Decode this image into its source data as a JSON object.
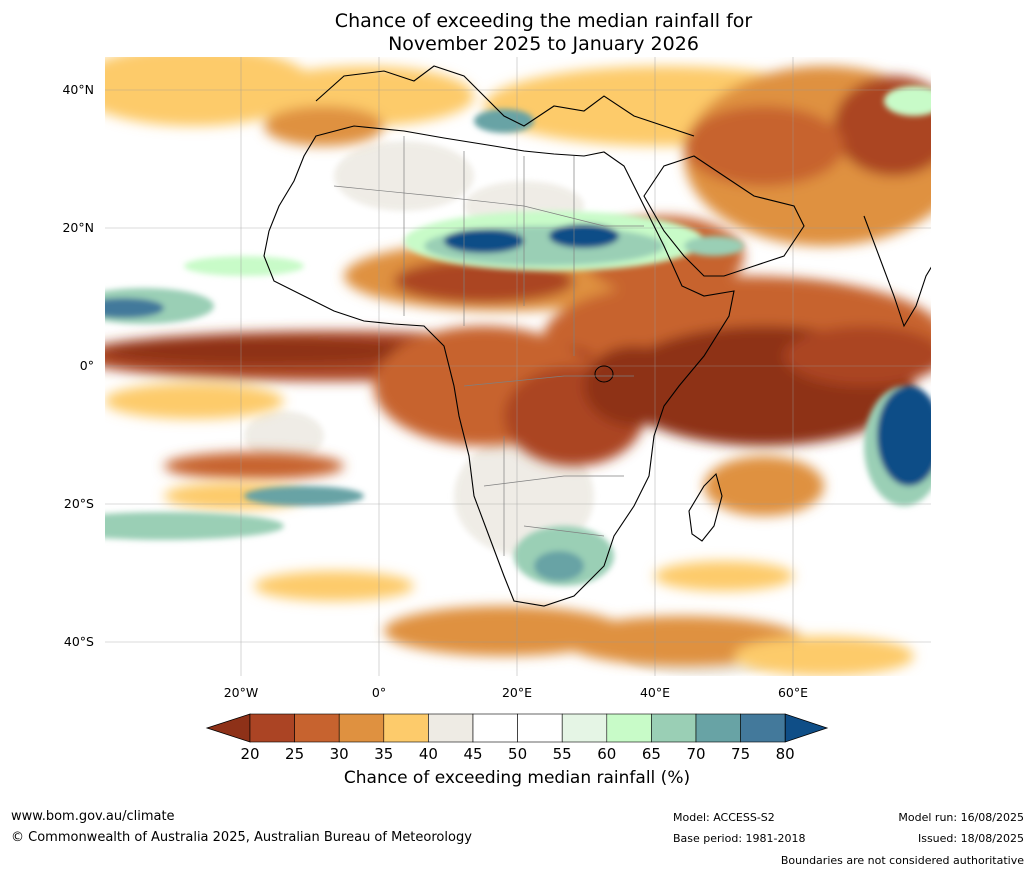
{
  "title_line1": "Chance of exceeding the median rainfall for",
  "title_line2": "November 2025 to January 2026",
  "map": {
    "lat_labels": [
      "40°N",
      "20°N",
      "0°",
      "20°S",
      "40°S"
    ],
    "lon_labels": [
      "20°W",
      "0°",
      "20°E",
      "40°E",
      "60°E"
    ]
  },
  "colorbar": {
    "ticks": [
      "20",
      "25",
      "30",
      "35",
      "40",
      "45",
      "50",
      "55",
      "60",
      "65",
      "70",
      "75",
      "80"
    ],
    "colors": [
      "#8e3118",
      "#ab4424",
      "#c7632f",
      "#df9140",
      "#fdcb6b",
      "#eeebe4",
      "#ffffff",
      "#ffffff",
      "#e5f5e5",
      "#c8fbc8",
      "#9acfb5",
      "#68a3a5",
      "#43799b",
      "#0f4e87"
    ],
    "label": "Chance of exceeding median rainfall (%)"
  },
  "footer": {
    "website": "www.bom.gov.au/climate",
    "copyright": "© Commonwealth of Australia 2025, Australian Bureau of Meteorology",
    "model": "Model: ACCESS-S2",
    "base_period": "Base period: 1981-2018",
    "model_run": "Model run: 16/08/2025",
    "issued": "Issued: 18/08/2025",
    "disclaimer": "Boundaries are not considered authoritative"
  }
}
